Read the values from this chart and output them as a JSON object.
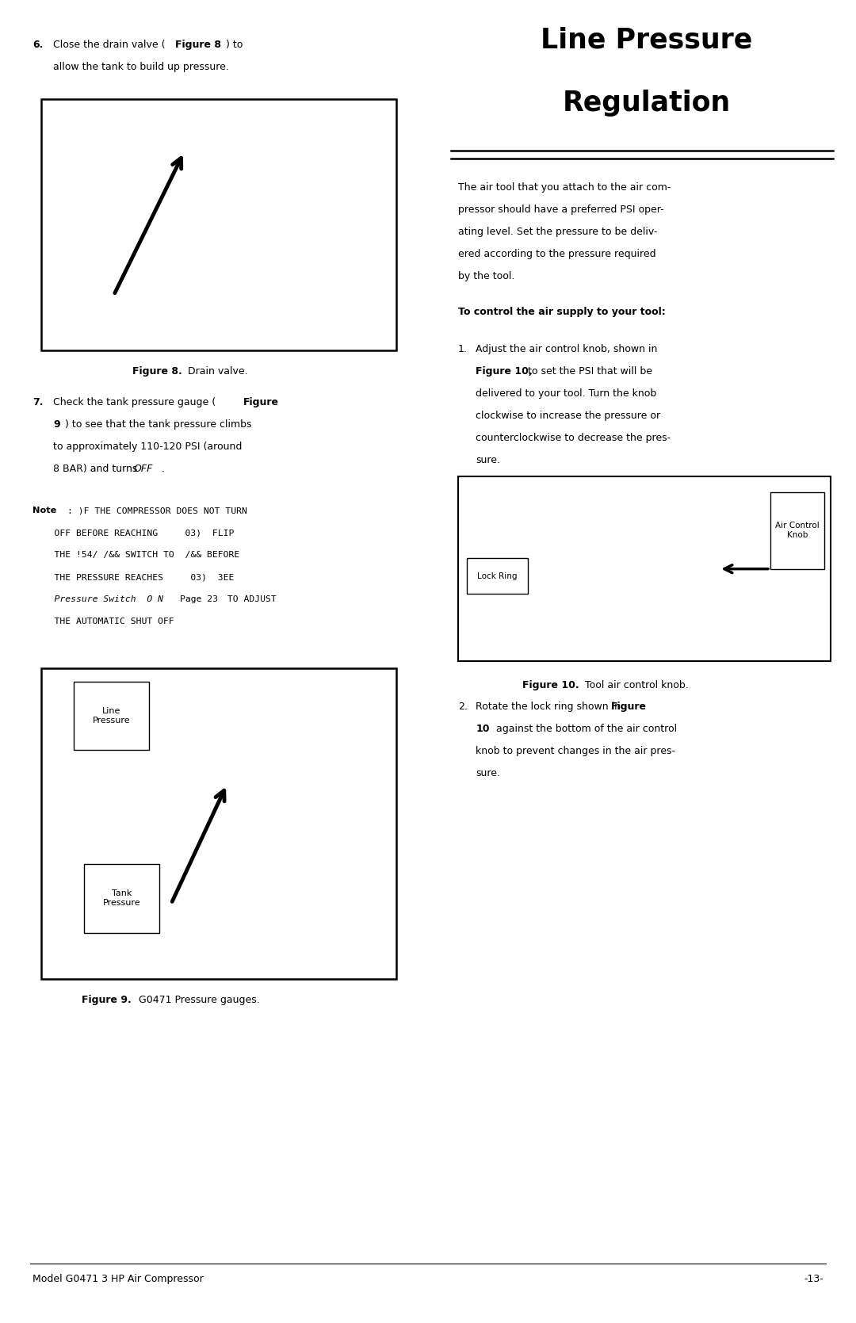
{
  "bg": "#ffffff",
  "fw": 10.8,
  "fh": 16.69,
  "title_line1": "Line Pressure",
  "title_line2": "Regulation",
  "footer_left": "Model G0471 3 HP Air Compressor",
  "footer_right": "-13-",
  "intro_text_lines": [
    "The air tool that you attach to the air com-",
    "pressor should have a preferred PSI oper-",
    "ating level. Set the pressure to be deliv-",
    "ered according to the pressure required",
    "by the tool."
  ],
  "subheading": "To control the air supply to your tool:",
  "air_control_label": "Air Control\nKnob",
  "lock_ring_label": "Lock Ring",
  "line_pressure_label": "Line\nPressure",
  "tank_pressure_label": "Tank\nPressure",
  "fig8_cap_bold": "Figure 8.",
  "fig8_cap_rest": " Drain valve.",
  "fig9_cap_bold": "Figure 9.",
  "fig9_cap_rest": " G0471 Pressure gauges.",
  "fig10_cap_bold": "Figure 10.",
  "fig10_cap_rest": " Tool air control knob."
}
